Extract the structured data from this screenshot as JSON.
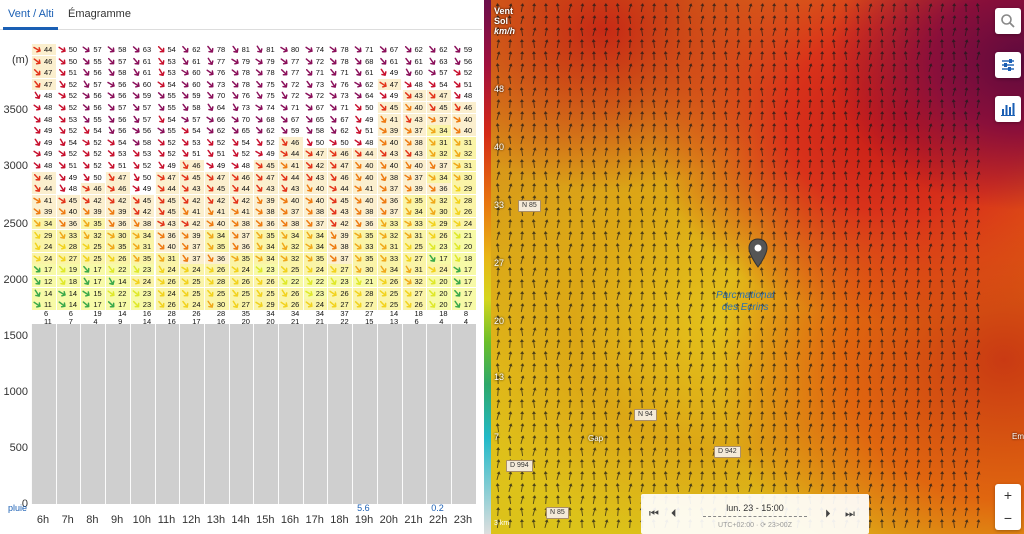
{
  "tabs": [
    {
      "label": "Vent / Alti",
      "active": true
    },
    {
      "label": "Émagramme",
      "active": false
    }
  ],
  "altitude_axis": {
    "unit": "(m)",
    "ticks": [
      "3500",
      "3000",
      "2500",
      "2000",
      "1500",
      "1000",
      "500",
      "0"
    ]
  },
  "hours": [
    "6h",
    "7h",
    "8h",
    "9h",
    "10h",
    "11h",
    "12h",
    "13h",
    "14h",
    "15h",
    "16h",
    "17h",
    "18h",
    "19h",
    "20h",
    "21h",
    "22h",
    "23h"
  ],
  "rain": {
    "label": "pluie",
    "values": [
      "",
      "",
      "",
      "",
      "",
      "",
      "",
      "",
      "",
      "",
      "",
      "",
      "",
      "5.6",
      "",
      "",
      "0.2",
      ""
    ]
  },
  "top_row_speeds": [
    "44",
    "50",
    "57",
    "58",
    "63",
    "54",
    "62",
    "78",
    "81",
    "81",
    "80",
    "74",
    "78",
    "71",
    "67",
    "62",
    "62",
    "59"
  ],
  "wind_rows": [
    [
      "46",
      "50",
      "55",
      "57",
      "61",
      "53",
      "61",
      "77",
      "79",
      "79",
      "77",
      "72",
      "78",
      "68",
      "61",
      "61",
      "63",
      "56"
    ],
    [
      "47",
      "51",
      "56",
      "58",
      "61",
      "53",
      "60",
      "76",
      "78",
      "78",
      "77",
      "71",
      "71",
      "61",
      "49",
      "60",
      "57",
      "52"
    ],
    [
      "47",
      "52",
      "57",
      "56",
      "60",
      "54",
      "60",
      "73",
      "78",
      "75",
      "72",
      "73",
      "76",
      "62",
      "47",
      "48",
      "54",
      "51"
    ],
    [
      "48",
      "52",
      "56",
      "56",
      "59",
      "55",
      "59",
      "70",
      "76",
      "75",
      "72",
      "72",
      "73",
      "64",
      "49",
      "43",
      "47",
      "48"
    ],
    [
      "48",
      "52",
      "56",
      "57",
      "57",
      "55",
      "58",
      "64",
      "73",
      "74",
      "71",
      "67",
      "71",
      "50",
      "45",
      "40",
      "45",
      "46"
    ],
    [
      "48",
      "53",
      "55",
      "56",
      "57",
      "54",
      "57",
      "66",
      "70",
      "68",
      "67",
      "65",
      "67",
      "49",
      "41",
      "43",
      "37",
      "40"
    ],
    [
      "49",
      "52",
      "54",
      "56",
      "56",
      "55",
      "54",
      "62",
      "65",
      "62",
      "59",
      "58",
      "62",
      "51",
      "39",
      "37",
      "34",
      "40"
    ],
    [
      "49",
      "54",
      "52",
      "54",
      "58",
      "52",
      "53",
      "52",
      "54",
      "52",
      "46",
      "50",
      "50",
      "48",
      "40",
      "38",
      "31",
      "31"
    ],
    [
      "49",
      "52",
      "52",
      "53",
      "53",
      "52",
      "51",
      "51",
      "52",
      "49",
      "44",
      "47",
      "46",
      "44",
      "43",
      "43",
      "32",
      "32"
    ],
    [
      "48",
      "51",
      "52",
      "51",
      "52",
      "49",
      "46",
      "49",
      "48",
      "45",
      "41",
      "42",
      "47",
      "40",
      "40",
      "40",
      "37",
      "31"
    ],
    [
      "46",
      "49",
      "50",
      "47",
      "50",
      "47",
      "45",
      "47",
      "46",
      "47",
      "44",
      "43",
      "46",
      "40",
      "38",
      "37",
      "34",
      "30"
    ],
    [
      "44",
      "48",
      "46",
      "46",
      "49",
      "44",
      "43",
      "45",
      "44",
      "43",
      "43",
      "40",
      "44",
      "41",
      "37",
      "39",
      "36",
      "29"
    ],
    [
      "41",
      "45",
      "42",
      "42",
      "45",
      "45",
      "42",
      "42",
      "42",
      "39",
      "40",
      "40",
      "45",
      "40",
      "36",
      "35",
      "32",
      "28"
    ],
    [
      "39",
      "40",
      "39",
      "39",
      "42",
      "45",
      "41",
      "41",
      "41",
      "38",
      "37",
      "38",
      "43",
      "38",
      "37",
      "34",
      "30",
      "26"
    ],
    [
      "34",
      "36",
      "35",
      "36",
      "38",
      "43",
      "42",
      "40",
      "38",
      "36",
      "38",
      "37",
      "42",
      "36",
      "33",
      "33",
      "29",
      "24"
    ],
    [
      "29",
      "33",
      "32",
      "30",
      "34",
      "36",
      "39",
      "34",
      "37",
      "35",
      "34",
      "34",
      "39",
      "35",
      "32",
      "31",
      "26",
      "21"
    ],
    [
      "24",
      "28",
      "25",
      "35",
      "31",
      "40",
      "37",
      "35",
      "36",
      "34",
      "32",
      "34",
      "38",
      "33",
      "31",
      "25",
      "23",
      "20"
    ],
    [
      "24",
      "27",
      "25",
      "26",
      "35",
      "31",
      "37",
      "36",
      "35",
      "34",
      "32",
      "35",
      "37",
      "35",
      "33",
      "27",
      "17",
      "18"
    ],
    [
      "17",
      "19",
      "17",
      "22",
      "23",
      "24",
      "24",
      "26",
      "24",
      "23",
      "25",
      "24",
      "27",
      "30",
      "34",
      "31",
      "24",
      "17"
    ],
    [
      "12",
      "18",
      "17",
      "14",
      "24",
      "26",
      "25",
      "28",
      "26",
      "26",
      "22",
      "22",
      "23",
      "21",
      "26",
      "32",
      "20",
      "17"
    ],
    [
      "14",
      "14",
      "15",
      "22",
      "23",
      "24",
      "25",
      "25",
      "25",
      "25",
      "26",
      "23",
      "26",
      "28",
      "25",
      "27",
      "20",
      "17"
    ],
    [
      "11",
      "14",
      "17",
      "17",
      "23",
      "26",
      "24",
      "30",
      "27",
      "29",
      "26",
      "24",
      "27",
      "27",
      "25",
      "26",
      "20",
      "17"
    ]
  ],
  "ground_row": [
    [
      "6",
      "6",
      "19",
      "14",
      "16",
      "28",
      "26",
      "28",
      "35",
      "34",
      "34",
      "34",
      "37",
      "27",
      "14",
      "18",
      "18",
      "8"
    ],
    [
      "11",
      "7",
      "4",
      "9",
      "14",
      "16",
      "17",
      "16",
      "20",
      "20",
      "21",
      "21",
      "22",
      "15",
      "13",
      "6",
      "4",
      "4"
    ]
  ],
  "map": {
    "legend_title": [
      "Vent",
      "Sol",
      "km/h"
    ],
    "legend_labels": [
      "48",
      "40",
      "33",
      "27",
      "20",
      "13",
      "7"
    ],
    "park_name": [
      "Parc national",
      "des Ecrins"
    ],
    "roads": [
      "N 85",
      "N 94",
      "D 942",
      "D 994",
      "N 85"
    ],
    "towns": [
      "Gap",
      "Em"
    ],
    "time_label": "lun. 23 - 15:00",
    "time_sub": "UTC+02:00 · ⟳ 23>00Z",
    "scale_label": "3 km",
    "zoom_in": "+",
    "zoom_out": "−",
    "buttons": [
      "search-icon",
      "settings-sliders-icon",
      "chart-bars-icon"
    ]
  },
  "colors": {
    "accent": "#1a5fb4",
    "speed_low": "#2ea86a",
    "speed_mid": "#e8d51e",
    "speed_high": "#d42a17",
    "speed_max": "#8a0f5a",
    "ground": "#cfcfcf"
  }
}
